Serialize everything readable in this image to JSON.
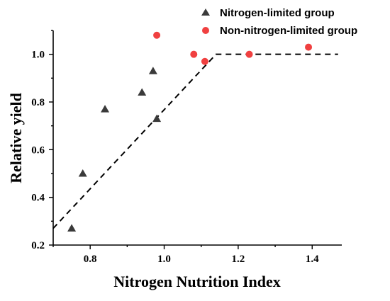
{
  "chart_data": {
    "type": "scatter",
    "title": "",
    "xlabel": "Nitrogen Nutrition Index",
    "ylabel": "Relative yield",
    "xlim": [
      0.7,
      1.48
    ],
    "ylim": [
      0.2,
      1.1
    ],
    "xticks": [
      0.8,
      1.0,
      1.2,
      1.4
    ],
    "yticks": [
      0.2,
      0.4,
      0.6,
      0.8,
      1.0
    ],
    "xtick_labels": [
      "0.8",
      "1.0",
      "1.2",
      "1.4"
    ],
    "ytick_labels": [
      "0.2",
      "0.4",
      "0.6",
      "0.8",
      "1.0"
    ],
    "grid": false,
    "legend_position": "top-right",
    "series": [
      {
        "name": "Nitrogen-limited group",
        "marker": "triangle",
        "color": "#3a3a3a",
        "points": [
          {
            "x": 0.75,
            "y": 0.27
          },
          {
            "x": 0.78,
            "y": 0.5
          },
          {
            "x": 0.84,
            "y": 0.77
          },
          {
            "x": 0.94,
            "y": 0.84
          },
          {
            "x": 0.97,
            "y": 0.93
          },
          {
            "x": 0.98,
            "y": 0.73
          }
        ]
      },
      {
        "name": "Non-nitrogen-limited group",
        "marker": "circle",
        "color": "#f04040",
        "points": [
          {
            "x": 0.98,
            "y": 1.08
          },
          {
            "x": 1.08,
            "y": 1.0
          },
          {
            "x": 1.11,
            "y": 0.97
          },
          {
            "x": 1.23,
            "y": 1.0
          },
          {
            "x": 1.39,
            "y": 1.03
          }
        ]
      }
    ],
    "reference_line": {
      "style": "dashed",
      "color": "#000000",
      "points": [
        {
          "x": 0.7,
          "y": 0.27
        },
        {
          "x": 1.14,
          "y": 1.0
        },
        {
          "x": 1.47,
          "y": 1.0
        }
      ]
    }
  }
}
